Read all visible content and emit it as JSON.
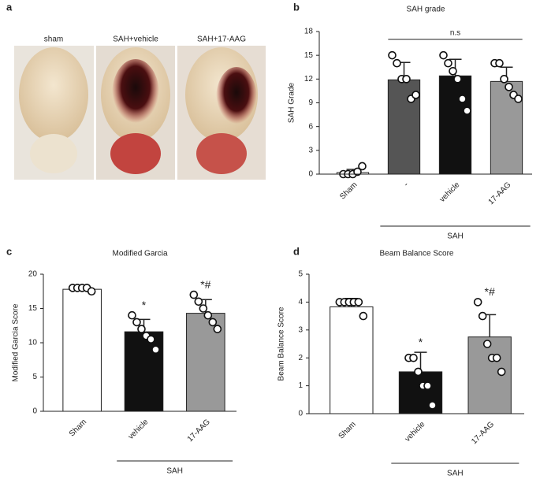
{
  "figure": {
    "panel_labels": [
      "a",
      "b",
      "c",
      "d"
    ],
    "photo_labels": [
      "sham",
      "SAH+vehicle",
      "SAH+17-AAG"
    ]
  },
  "chart_data": [
    {
      "type": "bar",
      "title": "SAH grade",
      "y_label": "SAH Grade",
      "categories": [
        "Sham",
        "-",
        "vehicle",
        "17-AAG"
      ],
      "values": [
        0.2,
        11.9,
        12.4,
        11.7
      ],
      "errors": [
        0.4,
        2.2,
        2.1,
        1.8
      ],
      "colors": [
        "#ffffff",
        "#555555",
        "#111111",
        "#999999"
      ],
      "points": [
        [
          0,
          0,
          0,
          0.3,
          1
        ],
        [
          15,
          14,
          12,
          12,
          9.5,
          10
        ],
        [
          15,
          14,
          13,
          12,
          9.5,
          8
        ],
        [
          14,
          14,
          12,
          11,
          10,
          9.5
        ]
      ],
      "markers": [
        null,
        null,
        null,
        null
      ],
      "comparison_label": "n.s",
      "group_label": "SAH",
      "ylim": [
        0,
        18
      ],
      "yticks": [
        0,
        3,
        6,
        9,
        12,
        15,
        18
      ]
    },
    {
      "type": "bar",
      "title": "Modified Garcia",
      "y_label": "Modified Garcia Score",
      "categories": [
        "Sham",
        "vehicle",
        "17-AAG"
      ],
      "values": [
        17.8,
        11.6,
        14.3
      ],
      "errors": [
        0.4,
        1.8,
        2.0
      ],
      "colors": [
        "#ffffff",
        "#111111",
        "#999999"
      ],
      "points": [
        [
          18,
          18,
          18,
          18,
          17.5
        ],
        [
          14,
          13,
          12,
          11,
          10.5,
          9
        ],
        [
          17,
          16,
          15,
          14,
          13,
          12
        ]
      ],
      "markers": [
        null,
        "*",
        "*#"
      ],
      "group_label": "SAH",
      "ylim": [
        0,
        20
      ],
      "yticks": [
        0,
        5,
        10,
        15,
        20
      ]
    },
    {
      "type": "bar",
      "title": "Beam Balance Score",
      "y_label": "Beam Balance Score",
      "categories": [
        "Sham",
        "vehicle",
        "17-AAG"
      ],
      "values": [
        3.83,
        1.5,
        2.75
      ],
      "errors": [
        0.3,
        0.7,
        0.8
      ],
      "colors": [
        "#ffffff",
        "#111111",
        "#999999"
      ],
      "points": [
        [
          4,
          4,
          4,
          4,
          4,
          3.5
        ],
        [
          2,
          2,
          1.5,
          1,
          1,
          0.3
        ],
        [
          4,
          3.5,
          2.5,
          2,
          2,
          1.5
        ]
      ],
      "markers": [
        null,
        "*",
        "*#"
      ],
      "group_label": "SAH",
      "ylim": [
        0,
        5
      ],
      "yticks": [
        0,
        1,
        2,
        3,
        4,
        5
      ]
    }
  ]
}
